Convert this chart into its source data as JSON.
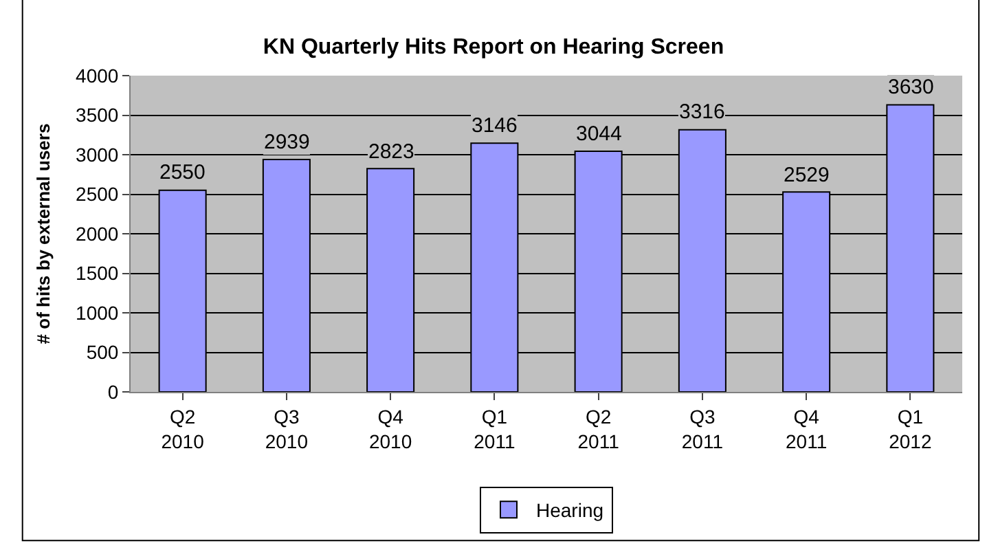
{
  "chart_data": {
    "type": "bar",
    "title": "KN Quarterly Hits Report on Hearing Screen",
    "ylabel": "# of hits by external users",
    "categories": [
      "Q2\n2010",
      "Q3\n2010",
      "Q4\n2010",
      "Q1\n2011",
      "Q2\n2011",
      "Q3\n2011",
      "Q4\n2011",
      "Q1\n2012"
    ],
    "series": [
      {
        "name": "Hearing",
        "color": "#9999ff",
        "values": [
          2550,
          2939,
          2823,
          3146,
          3044,
          3316,
          2529,
          3630
        ]
      }
    ],
    "ylim": [
      0,
      4000
    ],
    "yticks": [
      0,
      500,
      1000,
      1500,
      2000,
      2500,
      3000,
      3500,
      4000
    ],
    "grid": "y",
    "legend": "bottom",
    "data_labels": true
  }
}
